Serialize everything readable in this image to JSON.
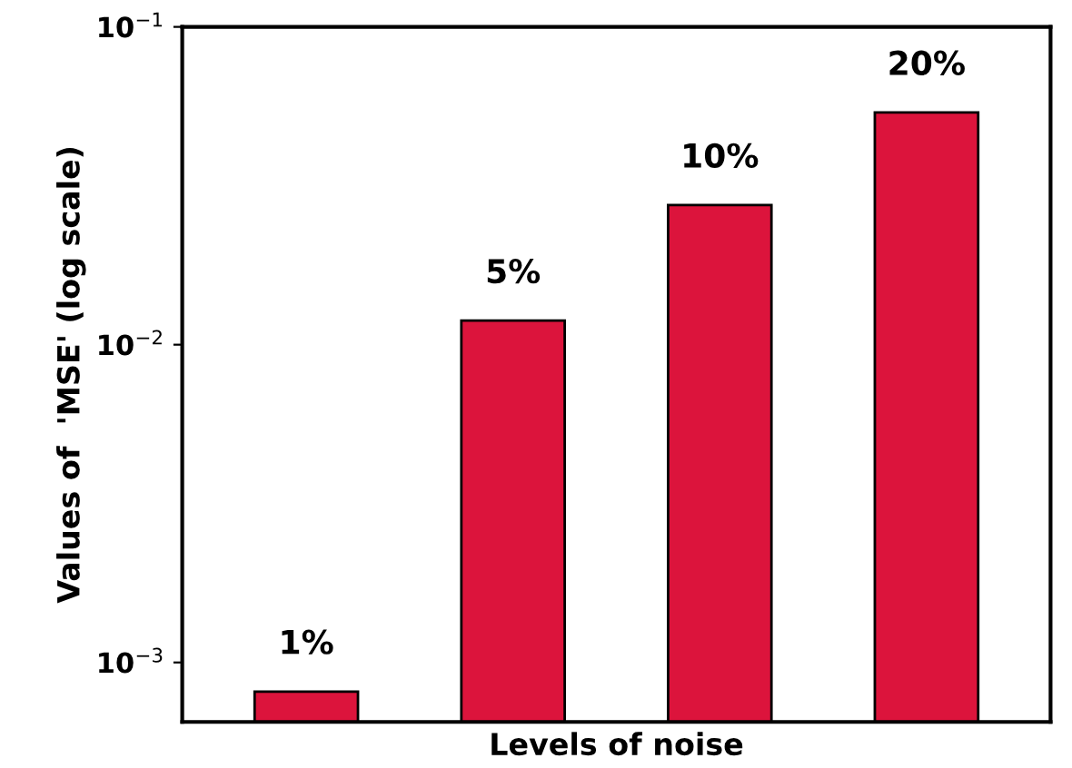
{
  "chart_data": {
    "type": "bar",
    "xlabel": "Levels of noise",
    "ylabel": "Values of  'MSE' (log scale)",
    "categories": [
      "1%",
      "5%",
      "10%",
      "20%"
    ],
    "values": [
      0.00081,
      0.0119,
      0.0275,
      0.0538
    ],
    "color": "#dc143c",
    "log": true,
    "ylim": [
      0.00065,
      0.1
    ],
    "yticks": [
      {
        "value": 0.001,
        "label": "10$^{−3}$"
      },
      {
        "value": 0.01,
        "label": "10$^{−2}$"
      },
      {
        "value": 0.1,
        "label": "10$^{−1}$"
      }
    ],
    "grid": false,
    "legend": false
  }
}
